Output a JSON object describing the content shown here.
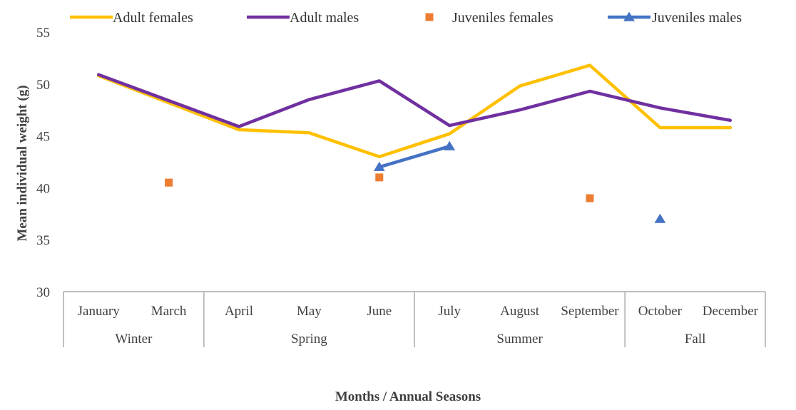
{
  "chart_data": {
    "type": "line",
    "title": "",
    "xlabel": "Months / Annual Seasons",
    "ylabel": "Mean individual weight (g)",
    "ylim": [
      30,
      55
    ],
    "yticks": [
      30,
      35,
      40,
      45,
      50,
      55
    ],
    "grid": false,
    "legend_position": "top",
    "categories": [
      "January",
      "March",
      "April",
      "May",
      "June",
      "July",
      "August",
      "September",
      "October",
      "December"
    ],
    "seasons": [
      {
        "label": "Winter",
        "months": [
          "January",
          "March"
        ]
      },
      {
        "label": "Spring",
        "months": [
          "April",
          "May",
          "June"
        ]
      },
      {
        "label": "Summer",
        "months": [
          "July",
          "August",
          "September"
        ]
      },
      {
        "label": "Fall",
        "months": [
          "October",
          "December"
        ]
      }
    ],
    "series": [
      {
        "name": "Adult females",
        "kind": "line",
        "color": "#FFC000",
        "values": [
          50.8,
          48.2,
          45.6,
          45.3,
          43.0,
          45.2,
          49.8,
          51.8,
          45.8,
          45.8
        ]
      },
      {
        "name": "Adult males",
        "kind": "line",
        "color": "#7030A0",
        "values": [
          50.9,
          48.4,
          45.9,
          48.5,
          50.3,
          46.0,
          47.5,
          49.3,
          47.7,
          46.5
        ]
      },
      {
        "name": "Juveniles females",
        "kind": "marker-square",
        "color": "#ED7D31",
        "values": [
          null,
          40.5,
          null,
          null,
          41.0,
          null,
          null,
          39.0,
          null,
          null
        ]
      },
      {
        "name": "Juveniles males",
        "kind": "line-triangle",
        "color": "#4472C4",
        "values": [
          null,
          null,
          null,
          null,
          42.0,
          44.0,
          null,
          null,
          37.0,
          null
        ]
      }
    ]
  }
}
